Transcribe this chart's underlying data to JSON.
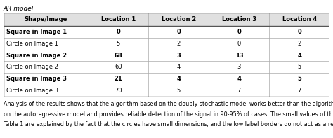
{
  "title": "AR model",
  "columns": [
    "Shape/Image",
    "Location 1",
    "Location 2",
    "Location 3",
    "Location 4"
  ],
  "rows": [
    [
      "Square in Image 1",
      "0",
      "0",
      "0",
      "0"
    ],
    [
      "Circle on Image 1",
      "5",
      "2",
      "0",
      "2"
    ],
    [
      "Square in Image 2",
      "68",
      "3",
      "13",
      "4"
    ],
    [
      "Circle on Image 2",
      "60",
      "4",
      "3",
      "5"
    ],
    [
      "Square in Image 3",
      "21",
      "4",
      "4",
      "5"
    ],
    [
      "Circle on Image 3",
      "70",
      "5",
      "7",
      "7"
    ]
  ],
  "footer_lines": [
    "Analysis of the results shows that the algorithm based on the doubly stochastic model works better than the algorithm based",
    "on the autoregressive model and provides reliable detection of the signal in 90-95% of cases. The small values of the gains in",
    "Table 1 are explained by the fact that the circles have small dimensions, and the low label borders do not act as a reasonable scale to"
  ],
  "row_bold_indices": [
    0,
    2,
    4
  ],
  "bg_color": "#ffffff",
  "font_size": 6.0,
  "title_font_size": 6.5,
  "footer_font_size": 5.8,
  "header_bg": "#cccccc",
  "table_edge_color": "#555555",
  "inner_edge_color": "#aaaaaa"
}
